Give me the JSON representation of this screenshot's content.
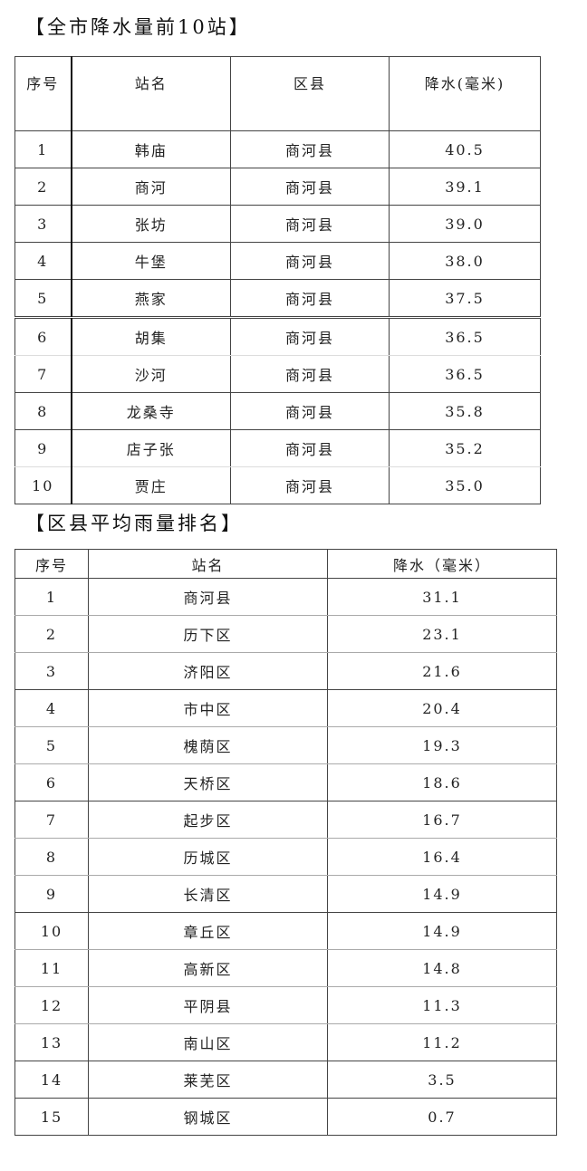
{
  "section1": {
    "title": "【全市降水量前10站】",
    "headers": [
      "序号",
      "站名",
      "区县",
      "降水(毫米)"
    ],
    "rows": [
      [
        "1",
        "韩庙",
        "商河县",
        "40.5"
      ],
      [
        "2",
        "商河",
        "商河县",
        "39.1"
      ],
      [
        "3",
        "张坊",
        "商河县",
        "39.0"
      ],
      [
        "4",
        "牛堡",
        "商河县",
        "38.0"
      ],
      [
        "5",
        "燕家",
        "商河县",
        "37.5"
      ],
      [
        "6",
        "胡集",
        "商河县",
        "36.5"
      ],
      [
        "7",
        "沙河",
        "商河县",
        "36.5"
      ],
      [
        "8",
        "龙桑寺",
        "商河县",
        "35.8"
      ],
      [
        "9",
        "店子张",
        "商河县",
        "35.2"
      ],
      [
        "10",
        "贾庄",
        "商河县",
        "35.0"
      ]
    ]
  },
  "section2": {
    "title": "【区县平均雨量排名】",
    "headers": [
      "序号",
      "站名",
      "降水（毫米）"
    ],
    "rows": [
      [
        "1",
        "商河县",
        "31.1"
      ],
      [
        "2",
        "历下区",
        "23.1"
      ],
      [
        "3",
        "济阳区",
        "21.6"
      ],
      [
        "4",
        "市中区",
        "20.4"
      ],
      [
        "5",
        "槐荫区",
        "19.3"
      ],
      [
        "6",
        "天桥区",
        "18.6"
      ],
      [
        "7",
        "起步区",
        "16.7"
      ],
      [
        "8",
        "历城区",
        "16.4"
      ],
      [
        "9",
        "长清区",
        "14.9"
      ],
      [
        "10",
        "章丘区",
        "14.9"
      ],
      [
        "11",
        "高新区",
        "14.8"
      ],
      [
        "12",
        "平阴县",
        "11.3"
      ],
      [
        "13",
        "南山区",
        "11.2"
      ],
      [
        "14",
        "莱芜区",
        "3.5"
      ],
      [
        "15",
        "钢城区",
        "0.7"
      ]
    ]
  }
}
